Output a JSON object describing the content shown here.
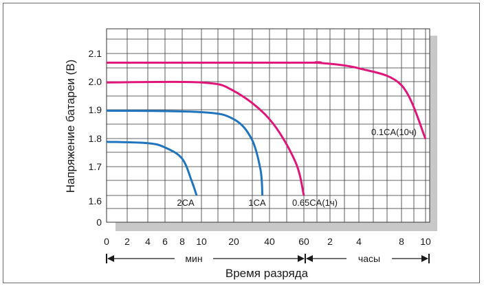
{
  "chart_data": {
    "type": "line",
    "ylabel": "Напряжение батареи (В)",
    "xlabel": "Время разряда",
    "x_sections": {
      "minutes_label": "мин",
      "hours_label": "часы"
    },
    "x_ticks_minutes": [
      "0",
      "2",
      "4",
      "6",
      "8",
      "10",
      "20",
      "40",
      "60"
    ],
    "x_ticks_hours": [
      "2",
      "4",
      "8",
      "10"
    ],
    "y_ticks": [
      "0",
      "1.6",
      "1.7",
      "1.8",
      "1.9",
      "2.0",
      "2.1"
    ],
    "grid": true,
    "colors": {
      "blue": "#1f74bd",
      "magenta": "#e0157a",
      "shadow": "#c8c8c8",
      "grid": "#333333"
    },
    "series": [
      {
        "name": "2CA",
        "color": "blue",
        "points": [
          [
            "0 мин",
            1.79
          ],
          [
            "4 мин",
            1.785
          ],
          [
            "6 мин",
            1.77
          ],
          [
            "8 мин",
            1.73
          ],
          [
            "9 мин",
            1.65
          ],
          [
            "9.5 мин",
            1.6
          ]
        ]
      },
      {
        "name": "1CA",
        "color": "blue",
        "points": [
          [
            "0 мин",
            1.9
          ],
          [
            "10 мин",
            1.895
          ],
          [
            "20 мин",
            1.87
          ],
          [
            "30 мин",
            1.8
          ],
          [
            "35 мин",
            1.69
          ],
          [
            "36 мин",
            1.6
          ]
        ]
      },
      {
        "name": "0.65CA(1ч)",
        "color": "magenta",
        "points": [
          [
            "0 мин",
            2.0
          ],
          [
            "10 мин",
            2.0
          ],
          [
            "20 мин",
            1.97
          ],
          [
            "40 мин",
            1.87
          ],
          [
            "55 мин",
            1.72
          ],
          [
            "60 мин",
            1.6
          ]
        ]
      },
      {
        "name": "0.1CA(10ч)",
        "color": "magenta",
        "points": [
          [
            "0 мин",
            2.07
          ],
          [
            "60 мин",
            2.07
          ],
          [
            "1.5 ч",
            2.07
          ],
          [
            "4 ч",
            2.05
          ],
          [
            "8 ч",
            1.99
          ],
          [
            "10 ч",
            1.8
          ]
        ]
      }
    ]
  }
}
